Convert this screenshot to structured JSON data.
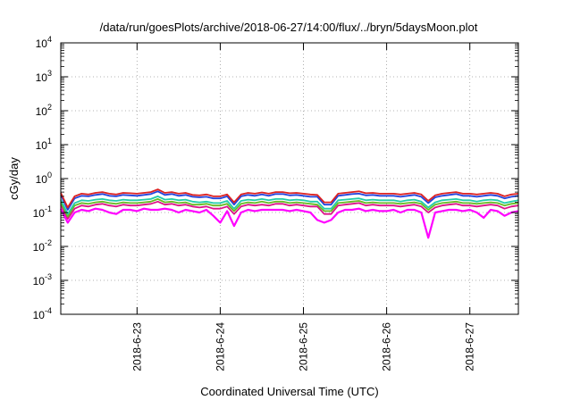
{
  "chart_data": {
    "type": "line",
    "title": "/data/run/goesPlots/archive/2018-06-27/14:00/flux/../bryn/5daysMoon.plot",
    "xlabel": "Coordinated Universal Time (UTC)",
    "ylabel": "cGy/day",
    "y_scale": "log",
    "ylim": [
      0.0001,
      10000
    ],
    "xlim": [
      "2018-06-22 02:00",
      "2018-06-27 14:00"
    ],
    "grid": true,
    "legend": "none",
    "y_ticks": [
      {
        "base": "10",
        "exp": "-4",
        "value": 0.0001
      },
      {
        "base": "10",
        "exp": "-3",
        "value": 0.001
      },
      {
        "base": "10",
        "exp": "-2",
        "value": 0.01
      },
      {
        "base": "10",
        "exp": "-1",
        "value": 0.1
      },
      {
        "base": "10",
        "exp": "0",
        "value": 1
      },
      {
        "base": "10",
        "exp": "1",
        "value": 10
      },
      {
        "base": "10",
        "exp": "2",
        "value": 100
      },
      {
        "base": "10",
        "exp": "3",
        "value": 1000
      },
      {
        "base": "10",
        "exp": "4",
        "value": 10000
      }
    ],
    "x_ticks": [
      {
        "label": "2018-6-23",
        "time": "2018-06-23 00:00"
      },
      {
        "label": "2018-6-24",
        "time": "2018-06-24 00:00"
      },
      {
        "label": "2018-6-25",
        "time": "2018-06-25 00:00"
      },
      {
        "label": "2018-6-26",
        "time": "2018-06-26 00:00"
      },
      {
        "label": "2018-6-27",
        "time": "2018-06-27 00:00"
      }
    ],
    "x": [
      "2018-06-22 02:00",
      "2018-06-22 04:00",
      "2018-06-22 06:00",
      "2018-06-22 08:00",
      "2018-06-22 10:00",
      "2018-06-22 12:00",
      "2018-06-22 14:00",
      "2018-06-22 16:00",
      "2018-06-22 18:00",
      "2018-06-22 20:00",
      "2018-06-22 22:00",
      "2018-06-23 00:00",
      "2018-06-23 02:00",
      "2018-06-23 04:00",
      "2018-06-23 06:00",
      "2018-06-23 08:00",
      "2018-06-23 10:00",
      "2018-06-23 12:00",
      "2018-06-23 14:00",
      "2018-06-23 16:00",
      "2018-06-23 18:00",
      "2018-06-23 20:00",
      "2018-06-23 22:00",
      "2018-06-24 00:00",
      "2018-06-24 02:00",
      "2018-06-24 04:00",
      "2018-06-24 06:00",
      "2018-06-24 08:00",
      "2018-06-24 10:00",
      "2018-06-24 12:00",
      "2018-06-24 14:00",
      "2018-06-24 16:00",
      "2018-06-24 18:00",
      "2018-06-24 20:00",
      "2018-06-24 22:00",
      "2018-06-25 00:00",
      "2018-06-25 02:00",
      "2018-06-25 04:00",
      "2018-06-25 06:00",
      "2018-06-25 08:00",
      "2018-06-25 10:00",
      "2018-06-25 12:00",
      "2018-06-25 14:00",
      "2018-06-25 16:00",
      "2018-06-25 18:00",
      "2018-06-25 20:00",
      "2018-06-25 22:00",
      "2018-06-26 00:00",
      "2018-06-26 02:00",
      "2018-06-26 04:00",
      "2018-06-26 06:00",
      "2018-06-26 08:00",
      "2018-06-26 10:00",
      "2018-06-26 12:00",
      "2018-06-26 14:00",
      "2018-06-26 16:00",
      "2018-06-26 18:00",
      "2018-06-26 20:00",
      "2018-06-26 22:00",
      "2018-06-27 00:00",
      "2018-06-27 02:00",
      "2018-06-27 04:00",
      "2018-06-27 06:00",
      "2018-06-27 08:00",
      "2018-06-27 10:00",
      "2018-06-27 12:00",
      "2018-06-27 14:00"
    ],
    "series": [
      {
        "color": "#dd2222",
        "values": [
          0.38,
          0.14,
          0.3,
          0.36,
          0.34,
          0.38,
          0.4,
          0.36,
          0.34,
          0.38,
          0.37,
          0.36,
          0.38,
          0.4,
          0.48,
          0.38,
          0.4,
          0.36,
          0.38,
          0.33,
          0.32,
          0.34,
          0.3,
          0.3,
          0.34,
          0.2,
          0.34,
          0.38,
          0.36,
          0.39,
          0.36,
          0.4,
          0.4,
          0.37,
          0.38,
          0.36,
          0.34,
          0.33,
          0.2,
          0.2,
          0.36,
          0.38,
          0.4,
          0.42,
          0.37,
          0.38,
          0.36,
          0.36,
          0.36,
          0.34,
          0.36,
          0.38,
          0.34,
          0.22,
          0.32,
          0.36,
          0.38,
          0.4,
          0.36,
          0.36,
          0.34,
          0.36,
          0.38,
          0.36,
          0.3,
          0.34,
          0.36
        ]
      },
      {
        "color": "#2244dd",
        "values": [
          0.33,
          0.12,
          0.26,
          0.31,
          0.3,
          0.33,
          0.35,
          0.31,
          0.3,
          0.33,
          0.32,
          0.31,
          0.33,
          0.35,
          0.42,
          0.33,
          0.35,
          0.31,
          0.33,
          0.29,
          0.28,
          0.29,
          0.26,
          0.26,
          0.3,
          0.17,
          0.3,
          0.33,
          0.31,
          0.34,
          0.31,
          0.35,
          0.35,
          0.32,
          0.33,
          0.31,
          0.29,
          0.29,
          0.17,
          0.17,
          0.31,
          0.33,
          0.35,
          0.36,
          0.32,
          0.33,
          0.31,
          0.31,
          0.31,
          0.29,
          0.31,
          0.33,
          0.29,
          0.19,
          0.28,
          0.31,
          0.33,
          0.35,
          0.31,
          0.31,
          0.29,
          0.31,
          0.33,
          0.31,
          0.26,
          0.29,
          0.31
        ]
      },
      {
        "color": "#22ccaa",
        "values": [
          0.24,
          0.09,
          0.19,
          0.23,
          0.22,
          0.24,
          0.25,
          0.23,
          0.22,
          0.24,
          0.23,
          0.23,
          0.24,
          0.25,
          0.3,
          0.24,
          0.25,
          0.23,
          0.24,
          0.21,
          0.2,
          0.21,
          0.19,
          0.19,
          0.22,
          0.13,
          0.22,
          0.24,
          0.23,
          0.25,
          0.23,
          0.25,
          0.25,
          0.23,
          0.24,
          0.23,
          0.21,
          0.21,
          0.13,
          0.13,
          0.23,
          0.24,
          0.25,
          0.26,
          0.23,
          0.24,
          0.23,
          0.23,
          0.23,
          0.21,
          0.23,
          0.24,
          0.21,
          0.14,
          0.2,
          0.23,
          0.24,
          0.25,
          0.23,
          0.23,
          0.21,
          0.23,
          0.24,
          0.23,
          0.19,
          0.21,
          0.23
        ]
      },
      {
        "color": "#66bb22",
        "values": [
          0.2,
          0.075,
          0.16,
          0.19,
          0.18,
          0.2,
          0.21,
          0.19,
          0.18,
          0.2,
          0.19,
          0.19,
          0.2,
          0.21,
          0.25,
          0.2,
          0.21,
          0.19,
          0.2,
          0.17,
          0.17,
          0.18,
          0.16,
          0.16,
          0.18,
          0.11,
          0.18,
          0.2,
          0.19,
          0.21,
          0.19,
          0.21,
          0.21,
          0.19,
          0.2,
          0.19,
          0.18,
          0.17,
          0.11,
          0.11,
          0.19,
          0.2,
          0.21,
          0.22,
          0.19,
          0.2,
          0.19,
          0.19,
          0.19,
          0.18,
          0.19,
          0.2,
          0.18,
          0.12,
          0.17,
          0.19,
          0.2,
          0.21,
          0.19,
          0.19,
          0.18,
          0.19,
          0.2,
          0.19,
          0.16,
          0.18,
          0.19
        ]
      },
      {
        "color": "#dd1188",
        "values": [
          0.17,
          0.065,
          0.13,
          0.16,
          0.15,
          0.17,
          0.18,
          0.16,
          0.15,
          0.17,
          0.16,
          0.16,
          0.17,
          0.18,
          0.21,
          0.17,
          0.18,
          0.16,
          0.17,
          0.15,
          0.14,
          0.15,
          0.13,
          0.13,
          0.15,
          0.09,
          0.15,
          0.17,
          0.16,
          0.17,
          0.16,
          0.18,
          0.18,
          0.16,
          0.17,
          0.16,
          0.15,
          0.15,
          0.09,
          0.09,
          0.16,
          0.17,
          0.18,
          0.19,
          0.16,
          0.17,
          0.16,
          0.16,
          0.16,
          0.15,
          0.16,
          0.17,
          0.15,
          0.1,
          0.14,
          0.16,
          0.17,
          0.18,
          0.16,
          0.16,
          0.15,
          0.16,
          0.17,
          0.16,
          0.13,
          0.15,
          0.16
        ]
      },
      {
        "color": "#ff00ff",
        "values": [
          0.13,
          0.05,
          0.1,
          0.12,
          0.11,
          0.13,
          0.12,
          0.1,
          0.09,
          0.12,
          0.12,
          0.11,
          0.13,
          0.12,
          0.12,
          0.13,
          0.12,
          0.1,
          0.12,
          0.11,
          0.1,
          0.12,
          0.08,
          0.05,
          0.11,
          0.04,
          0.1,
          0.12,
          0.11,
          0.12,
          0.12,
          0.12,
          0.12,
          0.11,
          0.12,
          0.11,
          0.1,
          0.06,
          0.05,
          0.06,
          0.1,
          0.12,
          0.12,
          0.13,
          0.11,
          0.12,
          0.11,
          0.11,
          0.12,
          0.1,
          0.12,
          0.12,
          0.1,
          0.018,
          0.1,
          0.11,
          0.12,
          0.12,
          0.11,
          0.12,
          0.1,
          0.07,
          0.12,
          0.11,
          0.08,
          0.1,
          0.11
        ]
      }
    ]
  }
}
